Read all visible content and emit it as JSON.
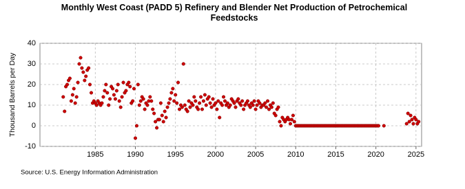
{
  "chart_data": {
    "type": "scatter",
    "title": "Monthly West Coast (PADD 5) Refinery and Blender Net Production of Petrochemical Feedstocks",
    "y_label": "Thousand Barrels per Day",
    "source": "Source: U.S. Energy Information Administration",
    "xlim": [
      1978.1,
      2025.7
    ],
    "xticks": [
      1985,
      1990,
      1995,
      2000,
      2005,
      2010,
      2015,
      2020,
      2025
    ],
    "ylim": [
      -10,
      40
    ],
    "yticks": [
      -10,
      0,
      10,
      20,
      30,
      40
    ],
    "grid": true,
    "series": [
      {
        "name": "West Coast (PADD 5) Refinery and Blender Net Production of Petrochemical Feedstocks",
        "color": "#cc0000",
        "x": [
          1981,
          1981.17,
          1981.33,
          1981.5,
          1981.67,
          1981.83,
          1982,
          1982.17,
          1982.33,
          1982.5,
          1982.67,
          1982.83,
          1983,
          1983.17,
          1983.33,
          1983.5,
          1983.67,
          1983.83,
          1984,
          1984.17,
          1984.33,
          1984.5,
          1984.67,
          1984.83,
          1985,
          1985.17,
          1985.33,
          1985.5,
          1985.67,
          1985.83,
          1986,
          1986.17,
          1986.33,
          1986.5,
          1986.67,
          1986.83,
          1987,
          1987.17,
          1987.33,
          1987.5,
          1987.67,
          1987.83,
          1988,
          1988.17,
          1988.33,
          1988.5,
          1988.67,
          1988.83,
          1989,
          1989.17,
          1989.33,
          1989.5,
          1989.67,
          1989.83,
          1990,
          1990.17,
          1990.33,
          1990.5,
          1990.67,
          1990.83,
          1991,
          1991.17,
          1991.33,
          1991.5,
          1991.67,
          1991.83,
          1992,
          1992.17,
          1992.33,
          1992.5,
          1992.67,
          1992.83,
          1993,
          1993.17,
          1993.33,
          1993.5,
          1993.67,
          1993.83,
          1994,
          1994.17,
          1994.33,
          1994.5,
          1994.67,
          1994.83,
          1995,
          1995.17,
          1995.33,
          1995.5,
          1995.67,
          1995.83,
          1996,
          1996.17,
          1996.33,
          1996.5,
          1996.67,
          1996.83,
          1997,
          1997.17,
          1997.33,
          1997.5,
          1997.67,
          1997.83,
          1998,
          1998.17,
          1998.33,
          1998.5,
          1998.67,
          1998.83,
          1999,
          1999.17,
          1999.33,
          1999.5,
          1999.67,
          1999.83,
          2000,
          2000.17,
          2000.33,
          2000.5,
          2000.67,
          2000.83,
          2001,
          2001.17,
          2001.33,
          2001.5,
          2001.67,
          2001.83,
          2002,
          2002.17,
          2002.33,
          2002.5,
          2002.67,
          2002.83,
          2003,
          2003.17,
          2003.33,
          2003.5,
          2003.67,
          2003.83,
          2004,
          2004.17,
          2004.33,
          2004.5,
          2004.67,
          2004.83,
          2005,
          2005.17,
          2005.33,
          2005.5,
          2005.67,
          2005.83,
          2006,
          2006.17,
          2006.33,
          2006.5,
          2006.67,
          2006.83,
          2007,
          2007.17,
          2007.33,
          2007.5,
          2007.67,
          2007.83,
          2008,
          2008.17,
          2008.33,
          2008.5,
          2008.67,
          2008.83,
          2009,
          2009.17,
          2009.33,
          2009.5,
          2009.67,
          2009.83,
          2010,
          2010.17,
          2010.33,
          2010.5,
          2010.67,
          2010.83,
          2011,
          2011.17,
          2011.33,
          2011.5,
          2011.67,
          2011.83,
          2012,
          2012.17,
          2012.33,
          2012.5,
          2012.67,
          2012.83,
          2013,
          2013.17,
          2013.33,
          2013.5,
          2013.67,
          2013.83,
          2014,
          2014.17,
          2014.33,
          2014.5,
          2014.67,
          2014.83,
          2015,
          2015.17,
          2015.33,
          2015.5,
          2015.67,
          2015.83,
          2016,
          2016.17,
          2016.33,
          2016.5,
          2016.67,
          2016.83,
          2017,
          2017.17,
          2017.33,
          2017.5,
          2017.67,
          2017.83,
          2018,
          2018.17,
          2018.33,
          2018.5,
          2018.67,
          2018.83,
          2019,
          2019.17,
          2019.33,
          2019.5,
          2019.67,
          2019.83,
          2020,
          2020.17,
          2020.33,
          2021,
          2023.83,
          2024,
          2024.17,
          2024.33,
          2024.5,
          2024.67,
          2024.83,
          2025,
          2025.17,
          2025.33
        ],
        "values": [
          14,
          7,
          19,
          20,
          22,
          23,
          12,
          15,
          18,
          11,
          14,
          21,
          30,
          33,
          28,
          26,
          22,
          24,
          27,
          28,
          20,
          16,
          11,
          12,
          11,
          10,
          12,
          11,
          10,
          11,
          14,
          17,
          20,
          16,
          10,
          13,
          19,
          18,
          15,
          13,
          17,
          20,
          12,
          9,
          14,
          21,
          16,
          17,
          20,
          21,
          19,
          11,
          12,
          18,
          -6,
          0,
          20,
          10,
          12,
          14,
          13,
          8,
          11,
          10,
          12,
          14,
          12,
          8,
          6,
          2,
          -1,
          3,
          3,
          11,
          5,
          2,
          7,
          4,
          9,
          11,
          13,
          16,
          18,
          12,
          15,
          11,
          21,
          8,
          10,
          9,
          30,
          10,
          8,
          7,
          12,
          9,
          11,
          10,
          14,
          12,
          9,
          8,
          11,
          14,
          8,
          12,
          15,
          10,
          13,
          14,
          11,
          9,
          13,
          10,
          11,
          8,
          12,
          4,
          11,
          10,
          14,
          12,
          10,
          11,
          9,
          10,
          13,
          12,
          11,
          9,
          12,
          13,
          11,
          10,
          12,
          8,
          10,
          11,
          12,
          10,
          9,
          11,
          10,
          12,
          8,
          10,
          12,
          11,
          9,
          10,
          10,
          11,
          9,
          12,
          8,
          10,
          9,
          11,
          6,
          5,
          8,
          9,
          2,
          0,
          4,
          3,
          2,
          3,
          4,
          3,
          1,
          3,
          5,
          2,
          0,
          0,
          0,
          0,
          0,
          0,
          0,
          0,
          0,
          0,
          0,
          0,
          0,
          0,
          0,
          0,
          0,
          0,
          0,
          0,
          0,
          0,
          0,
          0,
          0,
          0,
          0,
          0,
          0,
          0,
          0,
          0,
          0,
          0,
          0,
          0,
          0,
          0,
          0,
          0,
          0,
          0,
          0,
          0,
          0,
          0,
          0,
          0,
          0,
          0,
          0,
          0,
          0,
          0,
          0,
          0,
          0,
          0,
          0,
          0,
          0,
          0,
          0,
          0,
          1,
          6,
          2,
          5,
          3,
          1,
          4,
          3,
          1,
          2
        ]
      }
    ]
  }
}
